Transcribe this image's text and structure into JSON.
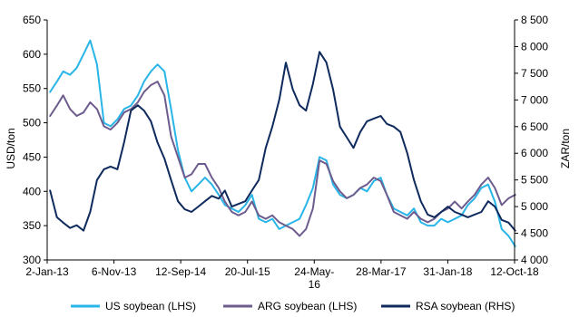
{
  "chart_data": {
    "type": "line",
    "ylabel_left": "USD/ton",
    "ylabel_right": "ZAR/ton",
    "ylim_left": [
      300,
      650
    ],
    "ylim_right": [
      4000,
      8500
    ],
    "yticks_left": [
      "650",
      "600",
      "550",
      "500",
      "450",
      "400",
      "350",
      "300"
    ],
    "yticks_right": [
      "8 500",
      "8 000",
      "7 500",
      "7 000",
      "6 500",
      "6 000",
      "5 500",
      "5 000",
      "4 500",
      "4 000"
    ],
    "xticks": [
      "2-Jan-13",
      "6-Nov-13",
      "12-Sep-14",
      "20-Jul-15",
      "24-May-16",
      "28-Mar-17",
      "31-Jan-18",
      "12-Oct-18"
    ],
    "grid": false,
    "legend_position": "bottom",
    "series": [
      {
        "name": "US soybean (LHS)",
        "axis": "left",
        "color": "#29b5e8",
        "x": [
          "2013-01",
          "2013-02",
          "2013-03",
          "2013-04",
          "2013-05",
          "2013-06",
          "2013-07",
          "2013-08",
          "2013-09",
          "2013-10",
          "2013-11",
          "2013-12",
          "2014-01",
          "2014-02",
          "2014-03",
          "2014-04",
          "2014-05",
          "2014-06",
          "2014-07",
          "2014-08",
          "2014-09",
          "2014-10",
          "2014-11",
          "2014-12",
          "2015-01",
          "2015-02",
          "2015-03",
          "2015-04",
          "2015-05",
          "2015-06",
          "2015-07",
          "2015-08",
          "2015-09",
          "2015-10",
          "2015-11",
          "2015-12",
          "2016-01",
          "2016-02",
          "2016-03",
          "2016-04",
          "2016-05",
          "2016-06",
          "2016-07",
          "2016-08",
          "2016-09",
          "2016-10",
          "2016-11",
          "2016-12",
          "2017-01",
          "2017-02",
          "2017-03",
          "2017-04",
          "2017-05",
          "2017-06",
          "2017-07",
          "2017-08",
          "2017-09",
          "2017-10",
          "2017-11",
          "2017-12",
          "2018-01",
          "2018-02",
          "2018-03",
          "2018-04",
          "2018-05",
          "2018-06",
          "2018-07",
          "2018-08",
          "2018-09",
          "2018-10"
        ],
        "values": [
          545,
          560,
          575,
          570,
          580,
          600,
          620,
          585,
          500,
          495,
          505,
          520,
          525,
          540,
          560,
          575,
          585,
          575,
          520,
          460,
          420,
          400,
          410,
          420,
          410,
          395,
          380,
          375,
          370,
          380,
          395,
          360,
          355,
          360,
          345,
          350,
          355,
          360,
          380,
          405,
          450,
          445,
          410,
          395,
          390,
          395,
          405,
          400,
          415,
          420,
          395,
          375,
          370,
          365,
          375,
          355,
          350,
          350,
          360,
          355,
          360,
          365,
          380,
          390,
          405,
          410,
          385,
          345,
          335,
          320
        ]
      },
      {
        "name": "ARG soybean (LHS)",
        "axis": "left",
        "color": "#6d5c8d",
        "x": [
          "2013-01",
          "2013-02",
          "2013-03",
          "2013-04",
          "2013-05",
          "2013-06",
          "2013-07",
          "2013-08",
          "2013-09",
          "2013-10",
          "2013-11",
          "2013-12",
          "2014-01",
          "2014-02",
          "2014-03",
          "2014-04",
          "2014-05",
          "2014-06",
          "2014-07",
          "2014-08",
          "2014-09",
          "2014-10",
          "2014-11",
          "2014-12",
          "2015-01",
          "2015-02",
          "2015-03",
          "2015-04",
          "2015-05",
          "2015-06",
          "2015-07",
          "2015-08",
          "2015-09",
          "2015-10",
          "2015-11",
          "2015-12",
          "2016-01",
          "2016-02",
          "2016-03",
          "2016-04",
          "2016-05",
          "2016-06",
          "2016-07",
          "2016-08",
          "2016-09",
          "2016-10",
          "2016-11",
          "2016-12",
          "2017-01",
          "2017-02",
          "2017-03",
          "2017-04",
          "2017-05",
          "2017-06",
          "2017-07",
          "2017-08",
          "2017-09",
          "2017-10",
          "2017-11",
          "2017-12",
          "2018-01",
          "2018-02",
          "2018-03",
          "2018-04",
          "2018-05",
          "2018-06",
          "2018-07",
          "2018-08",
          "2018-09",
          "2018-10"
        ],
        "values": [
          510,
          525,
          540,
          520,
          510,
          515,
          530,
          520,
          495,
          490,
          500,
          515,
          520,
          530,
          545,
          555,
          560,
          540,
          480,
          450,
          420,
          425,
          440,
          440,
          420,
          405,
          385,
          370,
          365,
          370,
          385,
          365,
          360,
          365,
          355,
          350,
          345,
          335,
          345,
          375,
          445,
          440,
          415,
          400,
          390,
          395,
          405,
          410,
          420,
          415,
          395,
          370,
          365,
          360,
          370,
          360,
          355,
          360,
          370,
          375,
          385,
          375,
          385,
          395,
          410,
          420,
          405,
          380,
          390,
          395
        ]
      },
      {
        "name": "RSA soybean (RHS)",
        "axis": "right",
        "color": "#0f2a5c",
        "x": [
          "2013-01",
          "2013-02",
          "2013-03",
          "2013-04",
          "2013-05",
          "2013-06",
          "2013-07",
          "2013-08",
          "2013-09",
          "2013-10",
          "2013-11",
          "2013-12",
          "2014-01",
          "2014-02",
          "2014-03",
          "2014-04",
          "2014-05",
          "2014-06",
          "2014-07",
          "2014-08",
          "2014-09",
          "2014-10",
          "2014-11",
          "2014-12",
          "2015-01",
          "2015-02",
          "2015-03",
          "2015-04",
          "2015-05",
          "2015-06",
          "2015-07",
          "2015-08",
          "2015-09",
          "2015-10",
          "2015-11",
          "2015-12",
          "2016-01",
          "2016-02",
          "2016-03",
          "2016-04",
          "2016-05",
          "2016-06",
          "2016-07",
          "2016-08",
          "2016-09",
          "2016-10",
          "2016-11",
          "2016-12",
          "2017-01",
          "2017-02",
          "2017-03",
          "2017-04",
          "2017-05",
          "2017-06",
          "2017-07",
          "2017-08",
          "2017-09",
          "2017-10",
          "2017-11",
          "2017-12",
          "2018-01",
          "2018-02",
          "2018-03",
          "2018-04",
          "2018-05",
          "2018-06",
          "2018-07",
          "2018-08",
          "2018-09",
          "2018-10"
        ],
        "values": [
          5300,
          4800,
          4700,
          4600,
          4650,
          4550,
          4900,
          5500,
          5700,
          5750,
          5700,
          6200,
          6800,
          6900,
          6800,
          6600,
          6200,
          5900,
          5500,
          5100,
          4950,
          4900,
          5000,
          5100,
          5200,
          5150,
          5300,
          5000,
          5050,
          5100,
          5300,
          5500,
          6100,
          6500,
          7000,
          7700,
          7200,
          6900,
          6800,
          7300,
          7900,
          7700,
          7200,
          6500,
          6300,
          6100,
          6400,
          6600,
          6650,
          6700,
          6550,
          6500,
          6400,
          6000,
          5500,
          5100,
          4850,
          4800,
          4900,
          5000,
          4900,
          4850,
          4800,
          4850,
          4900,
          5100,
          5000,
          4750,
          4700,
          4550
        ]
      }
    ]
  }
}
